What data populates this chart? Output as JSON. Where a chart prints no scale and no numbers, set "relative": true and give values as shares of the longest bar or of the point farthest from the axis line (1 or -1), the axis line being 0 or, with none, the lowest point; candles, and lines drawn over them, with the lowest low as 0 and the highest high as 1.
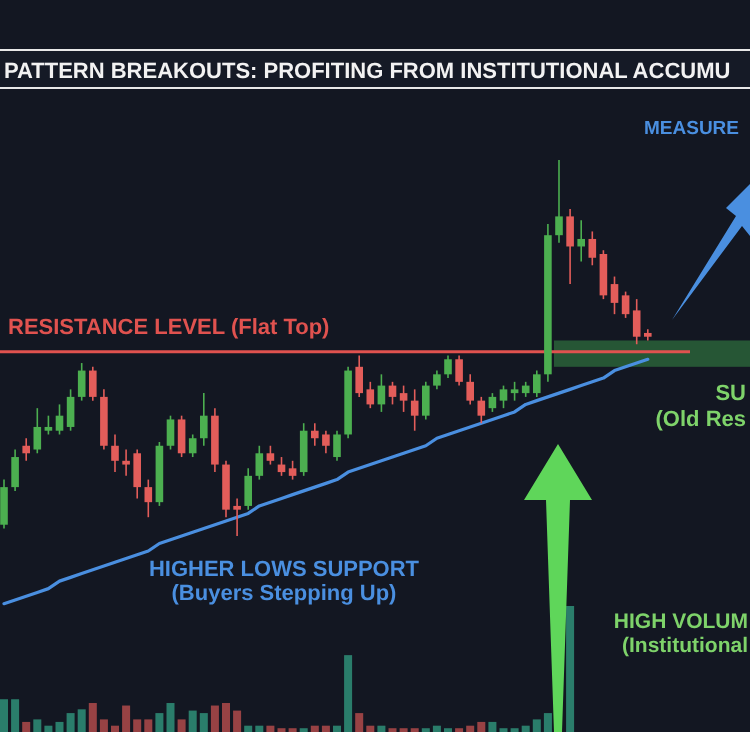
{
  "chart_data": [
    {
      "type": "candlestick",
      "title": "PATTERN BREAKOUTS: PROFITING FROM INSTITUTIONAL ACCUMU",
      "relative": true,
      "categories": [
        null,
        null,
        null,
        null,
        null,
        null,
        null,
        null,
        null,
        null,
        null,
        null,
        null,
        null,
        null,
        null,
        null,
        null,
        null,
        null,
        null,
        null,
        null,
        null,
        null,
        null,
        null,
        null,
        null,
        null,
        null,
        null,
        null,
        null,
        null,
        null,
        null,
        null,
        null,
        null,
        null,
        null,
        null,
        null,
        null,
        null,
        null,
        null,
        null,
        null,
        null,
        null,
        null,
        null,
        null,
        null,
        null,
        null,
        null
      ],
      "ohlc": [
        [
          0.03,
          0.15,
          0.02,
          0.13
        ],
        [
          0.13,
          0.23,
          0.12,
          0.21
        ],
        [
          0.24,
          0.26,
          0.2,
          0.22
        ],
        [
          0.23,
          0.34,
          0.22,
          0.29
        ],
        [
          0.28,
          0.32,
          0.27,
          0.29
        ],
        [
          0.28,
          0.35,
          0.27,
          0.32
        ],
        [
          0.29,
          0.39,
          0.28,
          0.37
        ],
        [
          0.37,
          0.46,
          0.36,
          0.44
        ],
        [
          0.44,
          0.45,
          0.36,
          0.37
        ],
        [
          0.37,
          0.39,
          0.23,
          0.24
        ],
        [
          0.24,
          0.27,
          0.17,
          0.2
        ],
        [
          0.2,
          0.23,
          0.16,
          0.19
        ],
        [
          0.22,
          0.23,
          0.1,
          0.13
        ],
        [
          0.13,
          0.15,
          0.05,
          0.09
        ],
        [
          0.09,
          0.25,
          0.08,
          0.24
        ],
        [
          0.24,
          0.32,
          0.23,
          0.31
        ],
        [
          0.31,
          0.32,
          0.21,
          0.22
        ],
        [
          0.22,
          0.27,
          0.21,
          0.26
        ],
        [
          0.26,
          0.38,
          0.24,
          0.32
        ],
        [
          0.32,
          0.34,
          0.17,
          0.19
        ],
        [
          0.19,
          0.2,
          0.05,
          0.07
        ],
        [
          0.08,
          0.1,
          0,
          0.07
        ],
        [
          0.08,
          0.18,
          0.07,
          0.16
        ],
        [
          0.16,
          0.24,
          0.15,
          0.22
        ],
        [
          0.22,
          0.24,
          0.19,
          0.2
        ],
        [
          0.19,
          0.21,
          0.16,
          0.17
        ],
        [
          0.18,
          0.2,
          0.15,
          0.16
        ],
        [
          0.17,
          0.3,
          0.16,
          0.28
        ],
        [
          0.28,
          0.3,
          0.24,
          0.26
        ],
        [
          0.27,
          0.28,
          0.22,
          0.24
        ],
        [
          0.21,
          0.28,
          0.2,
          0.27
        ],
        [
          0.27,
          0.45,
          0.26,
          0.44
        ],
        [
          0.45,
          0.48,
          0.37,
          0.38
        ],
        [
          0.39,
          0.41,
          0.34,
          0.35
        ],
        [
          0.35,
          0.43,
          0.33,
          0.4
        ],
        [
          0.4,
          0.41,
          0.35,
          0.37
        ],
        [
          0.38,
          0.4,
          0.33,
          0.36
        ],
        [
          0.36,
          0.39,
          0.28,
          0.32
        ],
        [
          0.32,
          0.41,
          0.31,
          0.4
        ],
        [
          0.4,
          0.44,
          0.39,
          0.43
        ],
        [
          0.43,
          0.48,
          0.42,
          0.47
        ],
        [
          0.47,
          0.48,
          0.4,
          0.41
        ],
        [
          0.41,
          0.43,
          0.35,
          0.36
        ],
        [
          0.36,
          0.37,
          0.3,
          0.32
        ],
        [
          0.34,
          0.38,
          0.33,
          0.37
        ],
        [
          0.36,
          0.4,
          0.34,
          0.39
        ],
        [
          0.38,
          0.41,
          0.36,
          0.39
        ],
        [
          0.38,
          0.41,
          0.37,
          0.4
        ],
        [
          0.38,
          0.44,
          0.37,
          0.43
        ],
        [
          0.43,
          0.83,
          0.41,
          0.8
        ],
        [
          0.8,
          1,
          0.78,
          0.85
        ],
        [
          0.85,
          0.87,
          0.67,
          0.77
        ],
        [
          0.77,
          0.84,
          0.73,
          0.79
        ],
        [
          0.79,
          0.81,
          0.72,
          0.74
        ],
        [
          0.75,
          0.76,
          0.63,
          0.64
        ],
        [
          0.67,
          0.69,
          0.59,
          0.62
        ],
        [
          0.64,
          0.65,
          0.58,
          0.59
        ],
        [
          0.6,
          0.63,
          0.51,
          0.53
        ],
        [
          0.54,
          0.55,
          0.52,
          0.53
        ]
      ],
      "colors": [
        "#4caf50",
        "#4caf50",
        "#e35d5a",
        "#4caf50",
        "#4caf50",
        "#4caf50",
        "#4caf50",
        "#4caf50",
        "#e35d5a",
        "#e35d5a",
        "#e35d5a",
        "#e35d5a",
        "#e35d5a",
        "#e35d5a",
        "#4caf50",
        "#4caf50",
        "#e35d5a",
        "#4caf50",
        "#4caf50",
        "#e35d5a",
        "#e35d5a",
        "#e35d5a",
        "#4caf50",
        "#4caf50",
        "#e35d5a",
        "#e35d5a",
        "#e35d5a",
        "#4caf50",
        "#e35d5a",
        "#e35d5a",
        "#4caf50",
        "#4caf50",
        "#e35d5a",
        "#e35d5a",
        "#4caf50",
        "#e35d5a",
        "#e35d5a",
        "#e35d5a",
        "#4caf50",
        "#4caf50",
        "#4caf50",
        "#e35d5a",
        "#e35d5a",
        "#e35d5a",
        "#4caf50",
        "#4caf50",
        "#4caf50",
        "#4caf50",
        "#4caf50",
        "#4caf50",
        "#4caf50",
        "#e35d5a",
        "#4caf50",
        "#e35d5a",
        "#e35d5a",
        "#e35d5a",
        "#e35d5a",
        "#e35d5a",
        "#e35d5a"
      ],
      "series": [
        {
          "type": "line",
          "name": "HIGHER LOWS SUPPORT (Buyers Stepping Up)",
          "color": "#4a8fe0",
          "values": [
            -0.18,
            -0.17,
            -0.16,
            -0.15,
            -0.14,
            -0.12,
            -0.11,
            -0.1,
            -0.09,
            -0.08,
            -0.07,
            -0.06,
            -0.05,
            -0.04,
            -0.02,
            -0.01,
            0,
            0.01,
            0.02,
            0.03,
            0.04,
            0.05,
            0.06,
            0.08,
            0.09,
            0.1,
            0.11,
            0.12,
            0.13,
            0.14,
            0.15,
            0.17,
            0.18,
            0.19,
            0.2,
            0.21,
            0.22,
            0.23,
            0.24,
            0.26,
            0.27,
            0.28,
            0.29,
            0.3,
            0.31,
            0.32,
            0.33,
            0.35,
            0.36,
            0.37,
            0.38,
            0.39,
            0.4,
            0.41,
            0.42,
            0.44,
            0.45,
            0.46,
            0.47
          ]
        }
      ],
      "ref_lines": [
        {
          "axis": "y",
          "value": 0.49,
          "label": "RESISTANCE LEVEL (Flat Top)",
          "color": "#e0524f"
        }
      ],
      "bands": [
        {
          "axis": "y",
          "from": 0.45,
          "to": 0.52,
          "label": "SU (Old Res",
          "color": "#3fa34d"
        }
      ],
      "annotations": [
        "MEASURE",
        "HIGH VOLUM (Institutional"
      ]
    },
    {
      "type": "bar",
      "relative": true,
      "categories": [
        null,
        null,
        null,
        null,
        null,
        null,
        null,
        null,
        null,
        null,
        null,
        null,
        null,
        null,
        null,
        null,
        null,
        null,
        null,
        null,
        null,
        null,
        null,
        null,
        null,
        null,
        null,
        null,
        null,
        null,
        null,
        null,
        null,
        null,
        null,
        null,
        null,
        null,
        null,
        null,
        null,
        null,
        null,
        null,
        null,
        null,
        null,
        null,
        null,
        null,
        null,
        null,
        null,
        null,
        null,
        null,
        null,
        null,
        null
      ],
      "values": [
        0.26,
        0.26,
        0.08,
        0.1,
        0.05,
        0.08,
        0.15,
        0.18,
        0.23,
        0.1,
        0.05,
        0.21,
        0.1,
        0.1,
        0.15,
        0.23,
        0.1,
        0.17,
        0.15,
        0.21,
        0.23,
        0.17,
        0.05,
        0.05,
        0.05,
        0.03,
        0.03,
        0.03,
        0.05,
        0.05,
        0.05,
        0.61,
        0.15,
        0.05,
        0.05,
        0.03,
        0.03,
        0.03,
        0.03,
        0.05,
        0.03,
        0.03,
        0.05,
        0.08,
        0.08,
        0.03,
        0.03,
        0.05,
        0.1,
        0.15,
        null,
        1,
        null,
        null,
        null,
        null,
        null,
        null,
        null
      ],
      "colors": [
        "#2f8f78",
        "#2f8f78",
        "#b04a4a",
        "#2f8f78",
        "#2f8f78",
        "#2f8f78",
        "#2f8f78",
        "#2f8f78",
        "#b04a4a",
        "#b04a4a",
        "#b04a4a",
        "#b04a4a",
        "#b04a4a",
        "#b04a4a",
        "#2f8f78",
        "#2f8f78",
        "#b04a4a",
        "#2f8f78",
        "#2f8f78",
        "#b04a4a",
        "#b04a4a",
        "#b04a4a",
        "#2f8f78",
        "#2f8f78",
        "#b04a4a",
        "#b04a4a",
        "#b04a4a",
        "#2f8f78",
        "#b04a4a",
        "#b04a4a",
        "#2f8f78",
        "#2f8f78",
        "#b04a4a",
        "#b04a4a",
        "#2f8f78",
        "#b04a4a",
        "#b04a4a",
        "#b04a4a",
        "#2f8f78",
        "#2f8f78",
        "#2f8f78",
        "#b04a4a",
        "#b04a4a",
        "#b04a4a",
        "#2f8f78",
        "#2f8f78",
        "#2f8f78",
        "#2f8f78",
        "#2f8f78",
        "#2f8f78",
        null,
        "#2f8f78",
        null,
        null,
        null,
        null,
        null,
        null,
        null
      ]
    }
  ]
}
